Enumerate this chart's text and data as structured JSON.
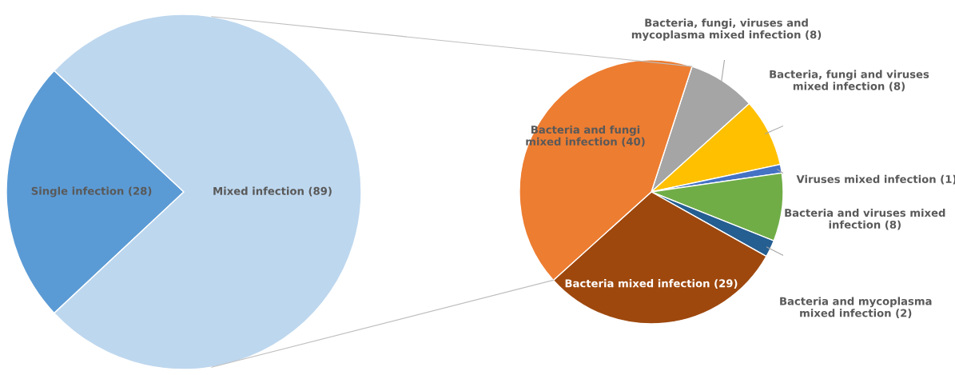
{
  "chart_data": [
    {
      "type": "pie",
      "categories": [
        "Single infection",
        "Mixed infection"
      ],
      "values": [
        28,
        89
      ],
      "value_labels": [
        "(28)",
        "(89)"
      ],
      "colors": [
        "#5b9bd5",
        "#bdd7ee"
      ]
    },
    {
      "type": "pie",
      "categories": [
        "Bacteria, fungi, viruses and mycoplasma mixed infection",
        "Bacteria, fungi and viruses mixed infection",
        "Viruses mixed infection",
        "Bacteria and viruses mixed infection",
        "Bacteria and mycoplasma mixed infection",
        "Bacteria mixed infection",
        "Bacteria and fungi mixed infection"
      ],
      "values": [
        8,
        8,
        1,
        8,
        2,
        29,
        40
      ],
      "value_labels": [
        "(8)",
        "(8)",
        "(1)",
        "(8)",
        "(2)",
        "(29)",
        "(40)"
      ],
      "colors": [
        "#a5a5a5",
        "#ffc000",
        "#4472c4",
        "#70ad47",
        "#255e91",
        "#9e480e",
        "#ed7d31"
      ]
    }
  ]
}
